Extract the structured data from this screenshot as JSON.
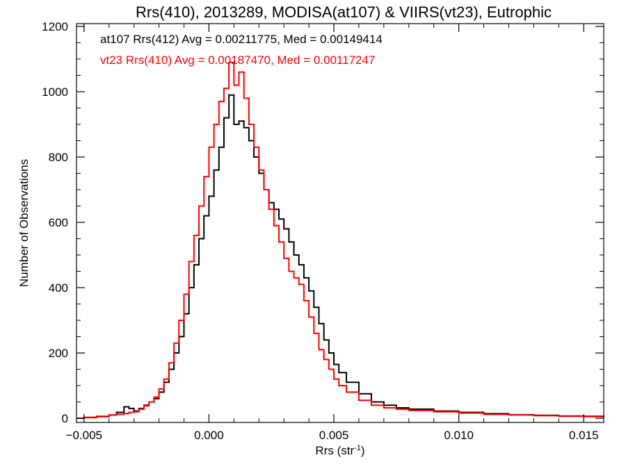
{
  "chart_data": {
    "type": "line",
    "title": "Rrs(410), 2013289, MODISA(at107) & VIIRS(vt23), Eutrophic",
    "xlabel_base": "Rrs (str",
    "xlabel_sup": "-1",
    "xlabel_close": ")",
    "ylabel": "Number of Observations",
    "xlim": [
      -0.0053,
      0.0158
    ],
    "ylim": [
      0,
      1200
    ],
    "x_ticks": [
      -0.005,
      0.0,
      0.005,
      0.01,
      0.015
    ],
    "x_tick_labels": [
      "−0.005",
      "0.000",
      "0.005",
      "0.010",
      "0.015"
    ],
    "y_ticks": [
      0,
      200,
      400,
      600,
      800,
      1000,
      1200
    ],
    "y_tick_labels": [
      "0",
      "200",
      "400",
      "600",
      "800",
      "1000",
      "1200"
    ],
    "grid": false,
    "annotations": [
      {
        "text": "at107 Rrs(412) Avg = 0.00211775, Med = 0.00149414",
        "color": "#000000"
      },
      {
        "text": "vt23 Rrs(410) Avg = 0.00187470, Med = 0.00117247",
        "color": "#ff0000"
      }
    ],
    "series": [
      {
        "name": "at107 Rrs(412)",
        "color": "#000000",
        "points": [
          [
            -0.0053,
            0
          ],
          [
            -0.005,
            2
          ],
          [
            -0.0045,
            5
          ],
          [
            -0.004,
            10
          ],
          [
            -0.0037,
            18
          ],
          [
            -0.0034,
            35
          ],
          [
            -0.0032,
            30
          ],
          [
            -0.003,
            22
          ],
          [
            -0.0028,
            30
          ],
          [
            -0.0026,
            40
          ],
          [
            -0.0024,
            50
          ],
          [
            -0.0022,
            60
          ],
          [
            -0.002,
            80
          ],
          [
            -0.0018,
            110
          ],
          [
            -0.0016,
            150
          ],
          [
            -0.0014,
            200
          ],
          [
            -0.0012,
            250
          ],
          [
            -0.001,
            320
          ],
          [
            -0.0008,
            400
          ],
          [
            -0.0006,
            470
          ],
          [
            -0.0004,
            550
          ],
          [
            -0.0002,
            620
          ],
          [
            0.0,
            680
          ],
          [
            0.0002,
            760
          ],
          [
            0.0004,
            830
          ],
          [
            0.0006,
            920
          ],
          [
            0.0008,
            990
          ],
          [
            0.001,
            900
          ],
          [
            0.0012,
            910
          ],
          [
            0.0014,
            890
          ],
          [
            0.0016,
            850
          ],
          [
            0.0018,
            800
          ],
          [
            0.002,
            750
          ],
          [
            0.0022,
            700
          ],
          [
            0.0024,
            660
          ],
          [
            0.0026,
            640
          ],
          [
            0.0028,
            610
          ],
          [
            0.003,
            580
          ],
          [
            0.0032,
            540
          ],
          [
            0.0034,
            500
          ],
          [
            0.0036,
            470
          ],
          [
            0.0038,
            430
          ],
          [
            0.004,
            390
          ],
          [
            0.0042,
            340
          ],
          [
            0.0044,
            290
          ],
          [
            0.0046,
            240
          ],
          [
            0.0048,
            200
          ],
          [
            0.005,
            165
          ],
          [
            0.0052,
            140
          ],
          [
            0.0055,
            110
          ],
          [
            0.006,
            75
          ],
          [
            0.0065,
            50
          ],
          [
            0.007,
            40
          ],
          [
            0.0075,
            32
          ],
          [
            0.008,
            28
          ],
          [
            0.009,
            22
          ],
          [
            0.01,
            18
          ],
          [
            0.011,
            14
          ],
          [
            0.012,
            11
          ],
          [
            0.013,
            9
          ],
          [
            0.014,
            7
          ],
          [
            0.015,
            6
          ],
          [
            0.0158,
            5
          ]
        ]
      },
      {
        "name": "vt23 Rrs(410)",
        "color": "#ff0000",
        "points": [
          [
            -0.0053,
            0
          ],
          [
            -0.005,
            3
          ],
          [
            -0.0045,
            6
          ],
          [
            -0.004,
            10
          ],
          [
            -0.0037,
            12
          ],
          [
            -0.0034,
            15
          ],
          [
            -0.0032,
            18
          ],
          [
            -0.003,
            20
          ],
          [
            -0.0028,
            28
          ],
          [
            -0.0026,
            38
          ],
          [
            -0.0024,
            50
          ],
          [
            -0.0022,
            65
          ],
          [
            -0.002,
            90
          ],
          [
            -0.0018,
            120
          ],
          [
            -0.0016,
            170
          ],
          [
            -0.0014,
            230
          ],
          [
            -0.0012,
            300
          ],
          [
            -0.001,
            380
          ],
          [
            -0.0008,
            480
          ],
          [
            -0.0006,
            560
          ],
          [
            -0.0004,
            650
          ],
          [
            -0.0002,
            740
          ],
          [
            0.0,
            830
          ],
          [
            0.0002,
            900
          ],
          [
            0.0004,
            970
          ],
          [
            0.0006,
            1010
          ],
          [
            0.0008,
            1090
          ],
          [
            0.001,
            1020
          ],
          [
            0.0012,
            1060
          ],
          [
            0.0014,
            980
          ],
          [
            0.0016,
            900
          ],
          [
            0.0018,
            830
          ],
          [
            0.002,
            760
          ],
          [
            0.0022,
            700
          ],
          [
            0.0024,
            640
          ],
          [
            0.0026,
            590
          ],
          [
            0.0028,
            540
          ],
          [
            0.003,
            490
          ],
          [
            0.0032,
            450
          ],
          [
            0.0034,
            430
          ],
          [
            0.0036,
            410
          ],
          [
            0.0038,
            360
          ],
          [
            0.004,
            310
          ],
          [
            0.0042,
            260
          ],
          [
            0.0044,
            210
          ],
          [
            0.0046,
            180
          ],
          [
            0.0048,
            150
          ],
          [
            0.005,
            120
          ],
          [
            0.0052,
            100
          ],
          [
            0.0055,
            80
          ],
          [
            0.006,
            55
          ],
          [
            0.0065,
            40
          ],
          [
            0.007,
            32
          ],
          [
            0.0075,
            28
          ],
          [
            0.008,
            24
          ],
          [
            0.009,
            20
          ],
          [
            0.01,
            16
          ],
          [
            0.011,
            12
          ],
          [
            0.012,
            10
          ],
          [
            0.013,
            8
          ],
          [
            0.014,
            6
          ],
          [
            0.015,
            5
          ],
          [
            0.0158,
            4
          ]
        ]
      }
    ]
  }
}
